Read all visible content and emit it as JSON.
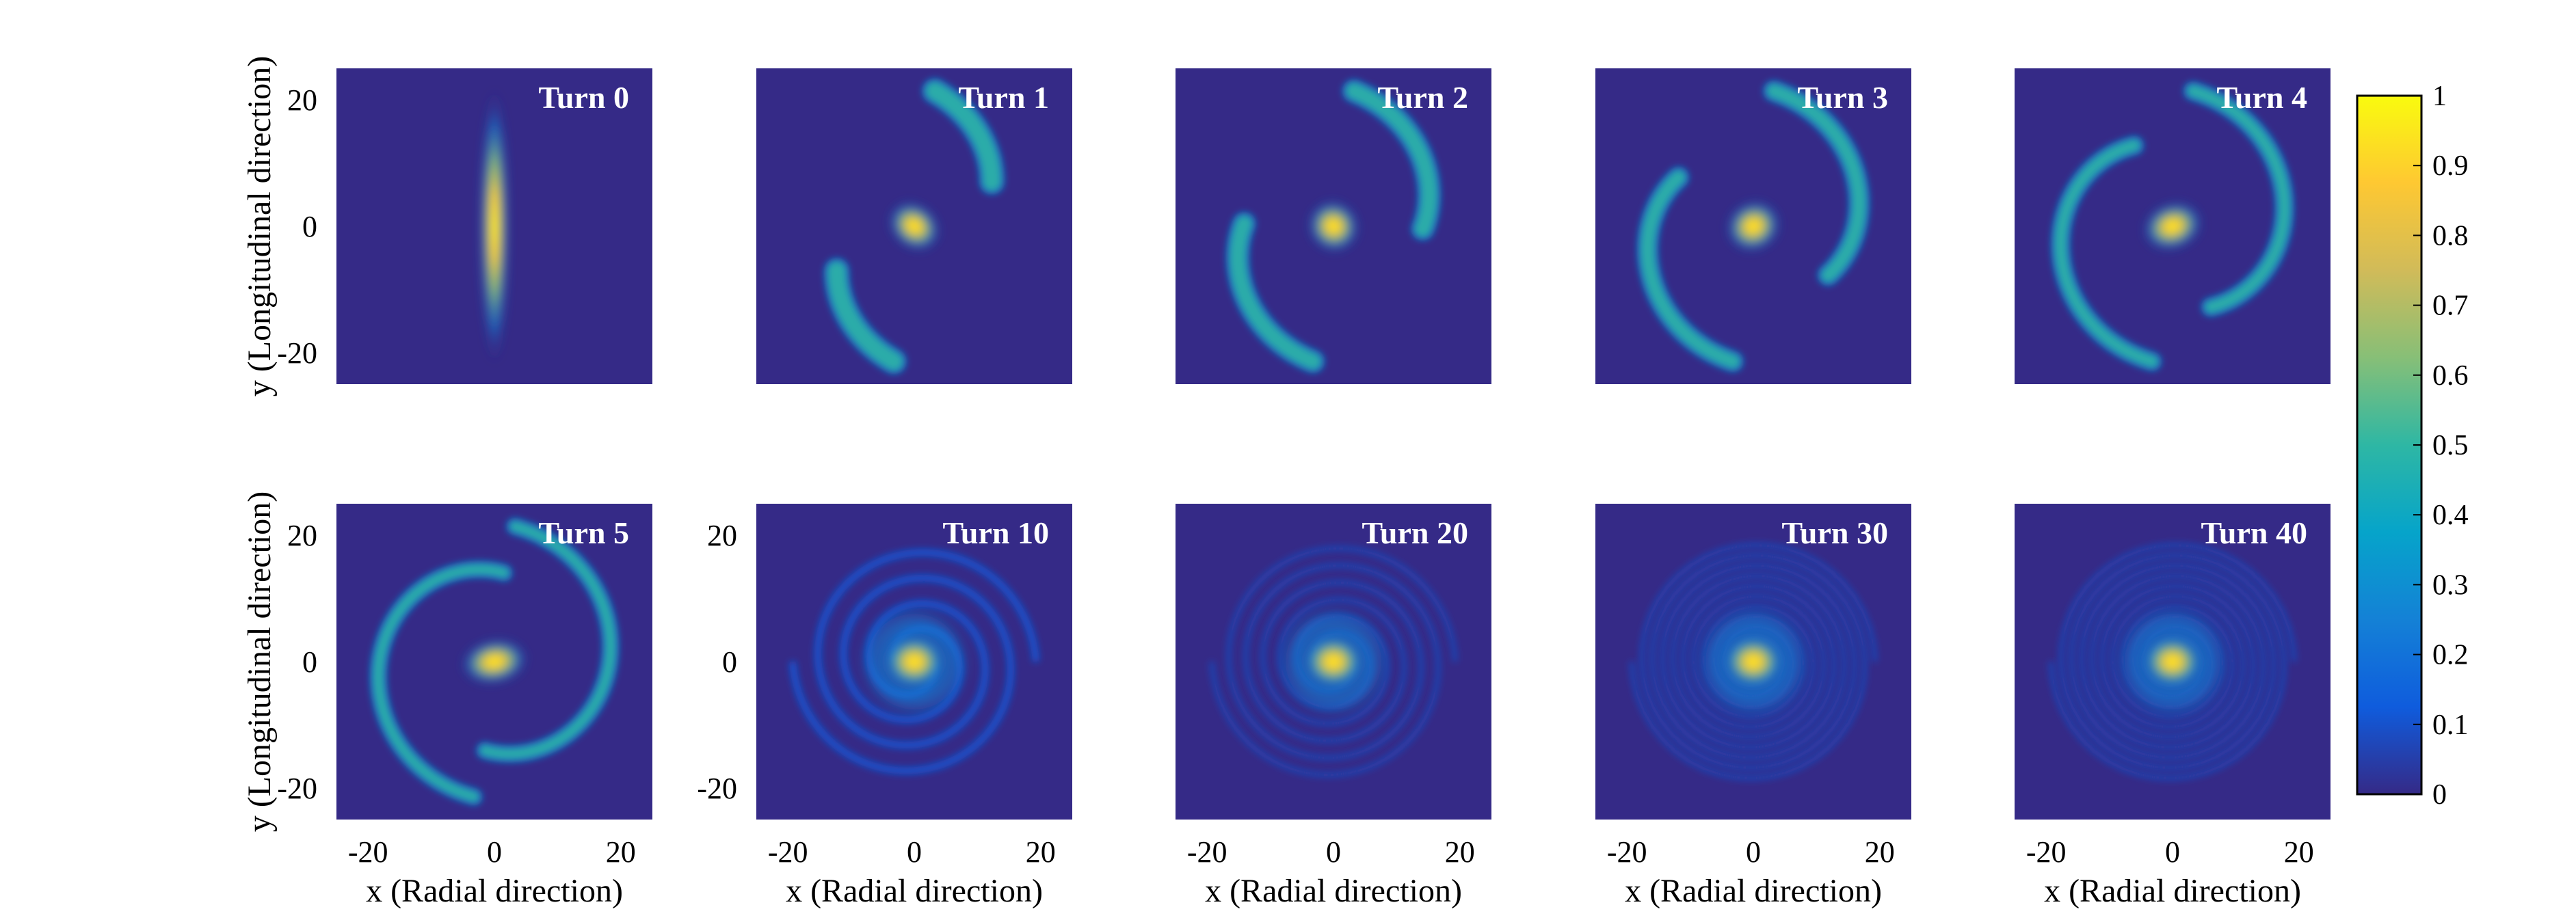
{
  "chart_data": {
    "type": "heatmap",
    "colormap": "parula",
    "background_color": "#352a87",
    "grid": false,
    "xlabel": "x (Radial direction)",
    "ylabel": "y (Longitudinal direction)",
    "xlim": [
      -25,
      25
    ],
    "ylim": [
      -25,
      25
    ],
    "x_ticks": [
      "-20",
      "0",
      "20"
    ],
    "y_ticks": [
      "20",
      "0",
      "-20"
    ],
    "colorbar": {
      "range": [
        0,
        1
      ],
      "ticks": [
        "1",
        "0.9",
        "0.8",
        "0.7",
        "0.6",
        "0.5",
        "0.4",
        "0.3",
        "0.2",
        "0.1",
        "0"
      ],
      "placement": "right"
    },
    "panels": [
      {
        "title": "Turn 0",
        "turn": 0
      },
      {
        "title": "Turn 1",
        "turn": 1
      },
      {
        "title": "Turn 2",
        "turn": 2
      },
      {
        "title": "Turn 3",
        "turn": 3
      },
      {
        "title": "Turn 4",
        "turn": 4
      },
      {
        "title": "Turn 5",
        "turn": 5
      },
      {
        "title": "Turn 10",
        "turn": 10
      },
      {
        "title": "Turn 20",
        "turn": 20
      },
      {
        "title": "Turn 30",
        "turn": 30
      },
      {
        "title": "Turn 40",
        "turn": 40
      }
    ]
  }
}
